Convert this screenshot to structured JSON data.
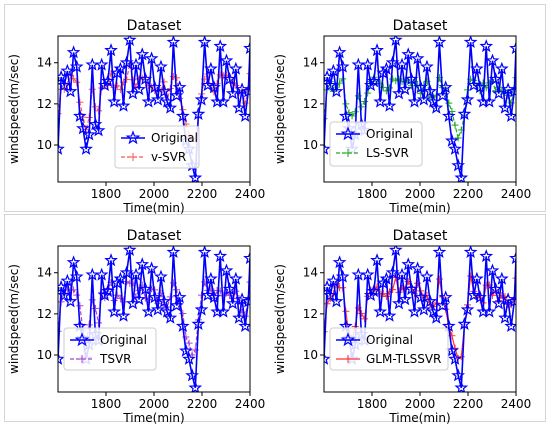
{
  "chart_data": [
    {
      "type": "line",
      "title": "Dataset",
      "xlabel": "Time(min)",
      "ylabel": "windspeed(m/sec)",
      "xlim": [
        1600,
        2400
      ],
      "ylim": [
        8.2,
        15.3
      ],
      "xticks": [
        1800,
        2000,
        2200,
        2400
      ],
      "yticks": [
        10,
        12,
        14
      ],
      "legend_placement": "lower-center",
      "series": [
        {
          "name": "Original",
          "color": "#0000ff",
          "marker": "star",
          "linestyle": "solid"
        },
        {
          "name": "v-SVR",
          "color": "#ff5555",
          "marker": "plus",
          "linestyle": "dashed"
        }
      ]
    },
    {
      "type": "line",
      "title": "Dataset",
      "xlabel": "Time(min)",
      "ylabel": "windspeed(m/sec)",
      "xlim": [
        1600,
        2400
      ],
      "ylim": [
        8.2,
        15.3
      ],
      "xticks": [
        1800,
        2000,
        2200,
        2400
      ],
      "yticks": [
        10,
        12,
        14
      ],
      "legend_placement": "lower-center",
      "series": [
        {
          "name": "Original",
          "color": "#0000ff",
          "marker": "star",
          "linestyle": "solid"
        },
        {
          "name": "LS-SVR",
          "color": "#22aa22",
          "marker": "plus",
          "linestyle": "dashed"
        }
      ]
    },
    {
      "type": "line",
      "title": "Dataset",
      "xlabel": "Time(min)",
      "ylabel": "windspeed(m/sec)",
      "xlim": [
        1600,
        2400
      ],
      "ylim": [
        8.2,
        15.3
      ],
      "xticks": [
        1800,
        2000,
        2200,
        2400
      ],
      "yticks": [
        10,
        12,
        14
      ],
      "legend_placement": "lower-left",
      "series": [
        {
          "name": "Original",
          "color": "#0000ff",
          "marker": "star",
          "linestyle": "solid"
        },
        {
          "name": "TSVR",
          "color": "#aa44cc",
          "marker": "plus",
          "linestyle": "dashed"
        }
      ]
    },
    {
      "type": "line",
      "title": "Dataset",
      "xlabel": "Time(min)",
      "ylabel": "windspeed(m/sec)",
      "xlim": [
        1600,
        2400
      ],
      "ylim": [
        8.2,
        15.3
      ],
      "xticks": [
        1800,
        2000,
        2200,
        2400
      ],
      "yticks": [
        10,
        12,
        14
      ],
      "legend_placement": "lower-left",
      "series": [
        {
          "name": "Original",
          "color": "#0000ff",
          "marker": "star",
          "linestyle": "solid"
        },
        {
          "name": "GLM-TLSSVR",
          "color": "#ff3333",
          "marker": "plus",
          "linestyle": "solid"
        }
      ]
    }
  ],
  "original_signal": {
    "x": [
      1600,
      1613,
      1626,
      1639,
      1652,
      1665,
      1678,
      1691,
      1704,
      1717,
      1730,
      1743,
      1756,
      1769,
      1782,
      1795,
      1808,
      1821,
      1834,
      1847,
      1860,
      1873,
      1886,
      1899,
      1912,
      1925,
      1938,
      1951,
      1964,
      1977,
      1990,
      2003,
      2016,
      2029,
      2042,
      2055,
      2068,
      2081,
      2094,
      2107,
      2120,
      2133,
      2146,
      2159,
      2172,
      2185,
      2198,
      2211,
      2224,
      2237,
      2250,
      2263,
      2276,
      2289,
      2302,
      2315,
      2328,
      2341,
      2354,
      2367,
      2380,
      2393,
      2400
    ],
    "y": [
      9.8,
      13.3,
      12.9,
      13.6,
      12.6,
      14.5,
      13.8,
      11.4,
      10.8,
      9.8,
      10.5,
      13.9,
      11.0,
      10.7,
      13.9,
      12.9,
      13.1,
      14.6,
      12.1,
      13.5,
      13.7,
      11.9,
      14.0,
      15.1,
      12.5,
      13.9,
      12.7,
      14.4,
      13.2,
      12.1,
      14.2,
      12.8,
      12.2,
      13.8,
      12.6,
      12.1,
      11.8,
      15.0,
      12.4,
      12.8,
      11.4,
      10.2,
      9.8,
      9.0,
      8.4,
      11.5,
      12.2,
      15.0,
      12.9,
      13.7,
      12.8,
      12.1,
      14.8,
      12.1,
      14.1,
      13.2,
      12.5,
      13.7,
      11.8,
      12.7,
      11.4,
      12.6,
      14.7
    ]
  }
}
